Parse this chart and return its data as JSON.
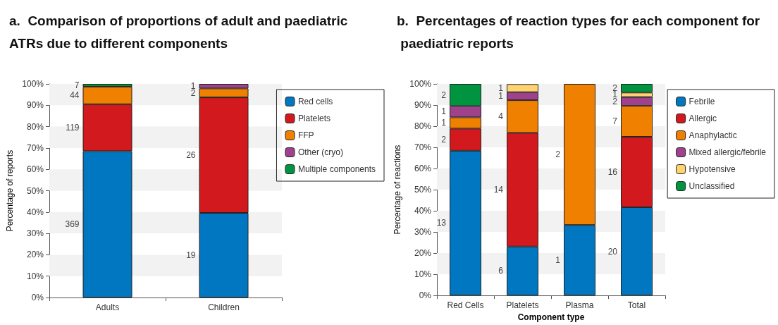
{
  "chart_data": [
    {
      "type": "bar",
      "title": "a.  Comparison of proportions of adult and paediatric ATRs due to different components",
      "ylabel": "Percentage of reports",
      "categories": [
        "Adults",
        "Children"
      ],
      "stacked": true,
      "ylim": [
        0,
        100
      ],
      "yticks": [
        {
          "value": 0,
          "label": "0%"
        },
        {
          "value": 10,
          "label": "10%"
        },
        {
          "value": 20,
          "label": "20%"
        },
        {
          "value": 30,
          "label": "30%"
        },
        {
          "value": 40,
          "label": "40%"
        },
        {
          "value": 50,
          "label": "50%"
        },
        {
          "value": 60,
          "label": "60%"
        },
        {
          "value": 70,
          "label": "70%"
        },
        {
          "value": 80,
          "label": "80%"
        },
        {
          "value": 90,
          "label": "90%"
        },
        {
          "value": 100,
          "label": "100%"
        }
      ],
      "legend": "top right",
      "bands": [
        {
          "axis": "y",
          "from": 10,
          "to": 20,
          "color": "#f2f2f2"
        },
        {
          "axis": "y",
          "from": 30,
          "to": 40,
          "color": "#f2f2f2"
        },
        {
          "axis": "y",
          "from": 50,
          "to": 60,
          "color": "#f2f2f2"
        },
        {
          "axis": "y",
          "from": 70,
          "to": 80,
          "color": "#f2f2f2"
        },
        {
          "axis": "y",
          "from": 90,
          "to": 100,
          "color": "#f2f2f2"
        }
      ],
      "series": [
        {
          "name": "Red cells",
          "color": "#0077c0",
          "values": [
            68.5,
            39.6
          ]
        },
        {
          "name": "Platelets",
          "color": "#d2191e",
          "values": [
            22.0,
            54.1
          ]
        },
        {
          "name": "FFP",
          "color": "#f08000",
          "values": [
            8.2,
            4.2
          ]
        },
        {
          "name": "Other (cryo)",
          "color": "#a0418c",
          "values": [
            0,
            2.1
          ]
        },
        {
          "name": "Multiple components",
          "color": "#009440",
          "values": [
            1.3,
            0
          ]
        }
      ],
      "annotations": [
        "369",
        "119",
        "44",
        "7",
        "19",
        "26",
        "2",
        "1"
      ]
    },
    {
      "type": "bar",
      "title": "b.  Percentages of reaction types for each component for paediatric reports",
      "xlabel": "Component type",
      "ylabel": "Percentage of reactions",
      "categories": [
        "Red Cells",
        "Platelets",
        "Plasma",
        "Total"
      ],
      "stacked": true,
      "ylim": [
        0,
        100
      ],
      "yticks": [
        {
          "value": 0,
          "label": "0%"
        },
        {
          "value": 10,
          "label": "10%"
        },
        {
          "value": 20,
          "label": "20%"
        },
        {
          "value": 30,
          "label": "30%"
        },
        {
          "value": 40,
          "label": "40%"
        },
        {
          "value": 50,
          "label": "50%"
        },
        {
          "value": 60,
          "label": "60%"
        },
        {
          "value": 70,
          "label": "70%"
        },
        {
          "value": 80,
          "label": "80%"
        },
        {
          "value": 90,
          "label": "90%"
        },
        {
          "value": 100,
          "label": "100%"
        }
      ],
      "legend": "top right",
      "bands": [
        {
          "axis": "y",
          "from": 10,
          "to": 20,
          "color": "#f2f2f2"
        },
        {
          "axis": "y",
          "from": 30,
          "to": 40,
          "color": "#f2f2f2"
        },
        {
          "axis": "y",
          "from": 50,
          "to": 60,
          "color": "#f2f2f2"
        },
        {
          "axis": "y",
          "from": 70,
          "to": 80,
          "color": "#f2f2f2"
        },
        {
          "axis": "y",
          "from": 90,
          "to": 100,
          "color": "#f2f2f2"
        }
      ],
      "series": [
        {
          "name": "Febrile",
          "color": "#0077c0",
          "values": [
            68.4,
            23.1,
            33.3,
            41.7
          ]
        },
        {
          "name": "Allergic",
          "color": "#d2191e",
          "values": [
            10.5,
            53.8,
            0,
            33.3
          ]
        },
        {
          "name": "Anaphylactic",
          "color": "#f08000",
          "values": [
            5.3,
            15.4,
            66.7,
            14.6
          ]
        },
        {
          "name": "Mixed allergic/febrile",
          "color": "#a0418c",
          "values": [
            5.3,
            3.8,
            0,
            4.2
          ]
        },
        {
          "name": "Hypotensive",
          "color": "#ffd470",
          "values": [
            0,
            3.8,
            0,
            2.1
          ]
        },
        {
          "name": "Unclassified",
          "color": "#009440",
          "values": [
            10.5,
            0,
            0,
            4.1
          ]
        }
      ],
      "annotations": [
        "13",
        "2",
        "1",
        "1",
        "2",
        "6",
        "14",
        "4",
        "1",
        "1",
        "1",
        "2",
        "20",
        "16",
        "7",
        "2",
        "1",
        "2"
      ]
    }
  ]
}
